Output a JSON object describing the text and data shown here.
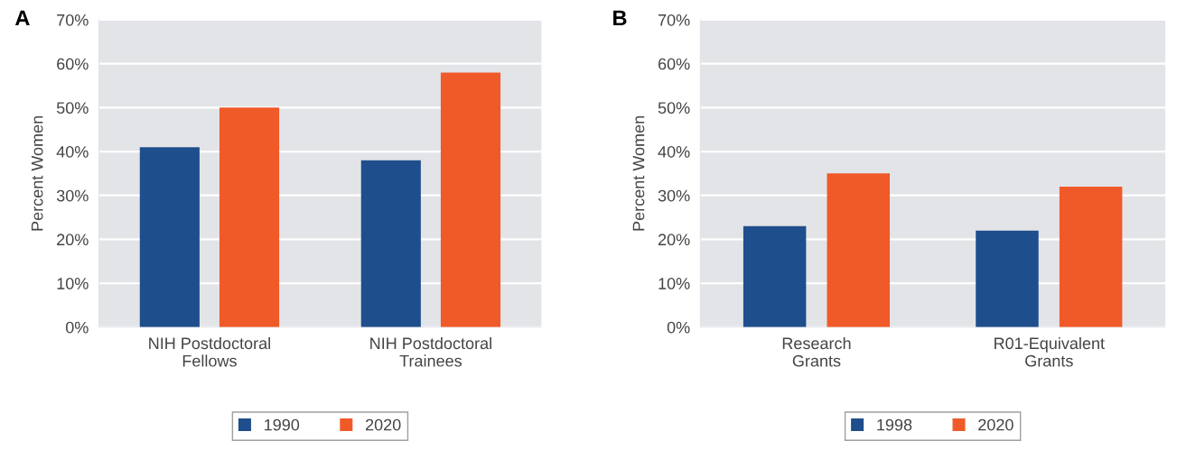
{
  "chart_data": [
    {
      "type": "bar",
      "annotations": [
        "A"
      ],
      "ylabel": "Percent Women",
      "categories": [
        "NIH Postdoctoral\nFellows",
        "NIH Postdoctoral\nTrainees"
      ],
      "series": [
        {
          "name": "1990",
          "color": "#1f4e8c",
          "values": [
            41,
            38
          ]
        },
        {
          "name": "2020",
          "color": "#f05a28",
          "values": [
            50,
            58
          ]
        }
      ],
      "ylim": [
        0,
        70
      ],
      "yticks": [
        {
          "value": 0,
          "label": "0%"
        },
        {
          "value": 10,
          "label": "10%"
        },
        {
          "value": 20,
          "label": "20%"
        },
        {
          "value": 30,
          "label": "30%"
        },
        {
          "value": 40,
          "label": "40%"
        },
        {
          "value": 50,
          "label": "50%"
        },
        {
          "value": 60,
          "label": "60%"
        },
        {
          "value": 70,
          "label": "70%"
        }
      ],
      "grid": "y",
      "legend": "bottom"
    },
    {
      "type": "bar",
      "annotations": [
        "B"
      ],
      "ylabel": "Percent Women",
      "categories": [
        "Research\nGrants",
        "R01-Equivalent\nGrants"
      ],
      "series": [
        {
          "name": "1998",
          "color": "#1f4e8c",
          "values": [
            23,
            22
          ]
        },
        {
          "name": "2020",
          "color": "#f05a28",
          "values": [
            35,
            32
          ]
        }
      ],
      "ylim": [
        0,
        70
      ],
      "yticks": [
        {
          "value": 0,
          "label": "0%"
        },
        {
          "value": 10,
          "label": "10%"
        },
        {
          "value": 20,
          "label": "20%"
        },
        {
          "value": 30,
          "label": "30%"
        },
        {
          "value": 40,
          "label": "40%"
        },
        {
          "value": 50,
          "label": "50%"
        },
        {
          "value": 60,
          "label": "60%"
        },
        {
          "value": 70,
          "label": "70%"
        }
      ],
      "grid": "y",
      "legend": "bottom"
    }
  ]
}
